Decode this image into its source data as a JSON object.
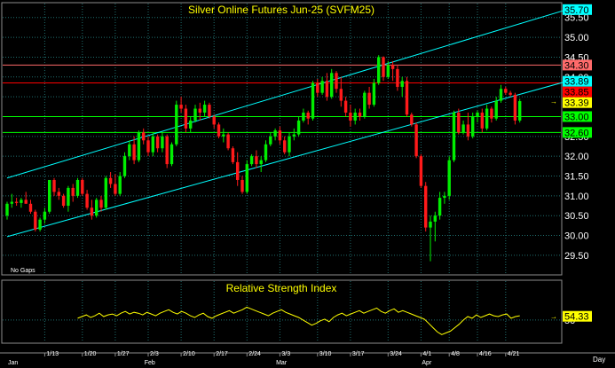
{
  "chart_data": [
    {
      "type": "candlestick",
      "title": "Silver Online Futures Jun-25 (SVFM25)",
      "note": "No Gaps",
      "y_ticks": [
        "29.50",
        "30.00",
        "30.50",
        "31.00",
        "31.50",
        "32.00",
        "32.50",
        "33.00",
        "33.50",
        "34.00",
        "34.50",
        "35.00",
        "35.50"
      ],
      "ylim": [
        29.05,
        35.83
      ],
      "x_ticks": [
        "1/13",
        "1/20",
        "1/27",
        "2/3",
        "2/10",
        "2/17",
        "2/24",
        "3/3",
        "3/10",
        "3/17",
        "3/24",
        "4/1",
        "4/8",
        "4/16",
        "4/21"
      ],
      "month_labels": [
        "Jan",
        "Feb",
        "Mar",
        "Apr"
      ],
      "x_axis_unit": "Day",
      "price_labels": [
        {
          "value": 35.7,
          "label": "35.70",
          "color": "#00ffff"
        },
        {
          "value": 34.3,
          "label": "34.30",
          "color": "#ff6a6a"
        },
        {
          "value": 33.89,
          "label": "33.89",
          "color": "#00ffff"
        },
        {
          "value": 33.85,
          "label": "33.85",
          "color": "#ff0000"
        },
        {
          "value": 33.39,
          "label": "33.39",
          "color": "#ffff00"
        },
        {
          "value": 33.0,
          "label": "33.00",
          "color": "#00ff00"
        },
        {
          "value": 32.6,
          "label": "32.60",
          "color": "#00ff00"
        }
      ],
      "horizontal_lines": [
        {
          "value": 34.3,
          "color": "#ff6a6a"
        },
        {
          "value": 33.85,
          "color": "#ff0000"
        },
        {
          "value": 33.0,
          "color": "#00ff00"
        },
        {
          "value": 32.6,
          "color": "#00ff00"
        }
      ],
      "channel_lines": [
        {
          "from": [
            0,
            31.45
          ],
          "to": [
            119,
            35.7
          ],
          "color": "#00ffff"
        },
        {
          "from": [
            0,
            29.97
          ],
          "to": [
            119,
            33.89
          ],
          "color": "#00ffff"
        }
      ],
      "candles": [
        [
          30.5,
          30.85,
          30.4,
          30.8
        ],
        [
          30.8,
          31.05,
          30.7,
          30.85
        ],
        [
          30.85,
          30.95,
          30.75,
          30.82
        ],
        [
          30.82,
          30.95,
          30.7,
          30.9
        ],
        [
          30.9,
          31.1,
          30.8,
          30.8
        ],
        [
          30.8,
          30.9,
          30.55,
          30.6
        ],
        [
          30.6,
          30.65,
          30.1,
          30.15
        ],
        [
          30.15,
          30.45,
          30.1,
          30.4
        ],
        [
          30.4,
          30.7,
          30.3,
          30.6
        ],
        [
          30.6,
          31.4,
          30.55,
          31.4
        ],
        [
          31.4,
          31.45,
          31.0,
          31.1
        ],
        [
          31.1,
          31.2,
          30.9,
          31.0
        ],
        [
          31.0,
          31.05,
          30.7,
          30.75
        ],
        [
          30.75,
          31.25,
          30.6,
          31.2
        ],
        [
          31.2,
          31.3,
          30.85,
          31.0
        ],
        [
          31.0,
          31.45,
          30.95,
          31.4
        ],
        [
          31.4,
          31.45,
          31.0,
          31.05
        ],
        [
          31.05,
          31.15,
          30.65,
          30.7
        ],
        [
          30.7,
          30.9,
          30.4,
          30.5
        ],
        [
          30.5,
          30.95,
          30.45,
          30.9
        ],
        [
          30.9,
          31.0,
          30.6,
          30.7
        ],
        [
          30.7,
          31.5,
          30.65,
          31.45
        ],
        [
          31.45,
          31.6,
          31.2,
          31.3
        ],
        [
          31.3,
          31.55,
          31.0,
          31.05
        ],
        [
          31.05,
          31.6,
          31.0,
          31.5
        ],
        [
          31.5,
          32.1,
          31.45,
          32.0
        ],
        [
          32.0,
          32.4,
          31.9,
          32.3
        ],
        [
          32.3,
          32.5,
          31.8,
          31.9
        ],
        [
          31.9,
          32.65,
          31.85,
          32.6
        ],
        [
          32.6,
          32.7,
          32.3,
          32.4
        ],
        [
          32.4,
          32.5,
          32.0,
          32.1
        ],
        [
          32.1,
          32.6,
          32.0,
          32.5
        ],
        [
          32.5,
          32.55,
          32.1,
          32.2
        ],
        [
          32.2,
          32.6,
          32.1,
          32.5
        ],
        [
          32.5,
          32.55,
          31.7,
          31.8
        ],
        [
          31.8,
          32.35,
          31.75,
          32.3
        ],
        [
          32.3,
          33.4,
          32.25,
          33.3
        ],
        [
          33.3,
          33.5,
          33.1,
          33.2
        ],
        [
          33.2,
          33.3,
          32.6,
          32.7
        ],
        [
          32.7,
          33.0,
          32.6,
          32.9
        ],
        [
          32.9,
          33.3,
          32.85,
          33.2
        ],
        [
          33.2,
          33.35,
          32.9,
          33.1
        ],
        [
          33.1,
          33.4,
          33.0,
          33.3
        ],
        [
          33.3,
          33.35,
          32.95,
          33.0
        ],
        [
          33.0,
          33.05,
          32.7,
          32.8
        ],
        [
          32.8,
          32.85,
          32.45,
          32.5
        ],
        [
          32.5,
          32.7,
          32.35,
          32.55
        ],
        [
          32.55,
          32.6,
          32.15,
          32.2
        ],
        [
          32.2,
          32.25,
          31.8,
          31.85
        ],
        [
          31.85,
          32.1,
          31.25,
          31.4
        ],
        [
          31.4,
          31.5,
          31.05,
          31.1
        ],
        [
          31.1,
          31.9,
          31.05,
          31.8
        ],
        [
          31.8,
          32.05,
          31.75,
          32.0
        ],
        [
          32.0,
          32.15,
          31.7,
          31.8
        ],
        [
          31.8,
          32.0,
          31.6,
          31.9
        ],
        [
          31.9,
          32.4,
          31.85,
          32.3
        ],
        [
          32.3,
          32.6,
          32.25,
          32.5
        ],
        [
          32.5,
          32.7,
          32.4,
          32.65
        ],
        [
          32.65,
          32.75,
          32.3,
          32.4
        ],
        [
          32.4,
          32.5,
          32.05,
          32.1
        ],
        [
          32.1,
          32.6,
          32.0,
          32.5
        ],
        [
          32.5,
          32.7,
          32.4,
          32.55
        ],
        [
          32.55,
          33.0,
          32.5,
          32.9
        ],
        [
          32.9,
          33.2,
          32.85,
          33.1
        ],
        [
          33.1,
          33.15,
          32.8,
          32.95
        ],
        [
          32.95,
          33.9,
          32.9,
          33.85
        ],
        [
          33.85,
          33.95,
          33.5,
          33.6
        ],
        [
          33.6,
          34.0,
          33.55,
          33.9
        ],
        [
          33.9,
          34.1,
          33.4,
          33.5
        ],
        [
          33.5,
          34.2,
          33.45,
          34.1
        ],
        [
          34.1,
          34.15,
          33.6,
          33.7
        ],
        [
          33.7,
          34.0,
          33.25,
          33.4
        ],
        [
          33.4,
          33.5,
          33.0,
          33.1
        ],
        [
          33.1,
          33.3,
          32.75,
          32.9
        ],
        [
          32.9,
          33.2,
          32.8,
          33.1
        ],
        [
          33.1,
          33.2,
          32.9,
          33.0
        ],
        [
          33.0,
          33.65,
          32.95,
          33.6
        ],
        [
          33.6,
          33.75,
          33.2,
          33.3
        ],
        [
          33.3,
          33.95,
          33.25,
          33.85
        ],
        [
          33.85,
          34.55,
          33.8,
          34.5
        ],
        [
          34.5,
          34.52,
          33.9,
          34.0
        ],
        [
          34.0,
          34.4,
          33.95,
          34.3
        ],
        [
          34.3,
          34.4,
          33.9,
          34.2
        ],
        [
          34.2,
          34.3,
          33.65,
          33.75
        ],
        [
          33.75,
          34.0,
          33.5,
          33.9
        ],
        [
          33.9,
          34.0,
          33.0,
          33.05
        ],
        [
          33.05,
          33.1,
          32.75,
          32.8
        ],
        [
          32.8,
          32.85,
          31.95,
          32.0
        ],
        [
          32.0,
          32.05,
          31.2,
          31.25
        ],
        [
          31.25,
          31.35,
          30.1,
          30.2
        ],
        [
          30.2,
          30.5,
          29.35,
          30.35
        ],
        [
          30.35,
          30.6,
          29.85,
          30.5
        ],
        [
          30.5,
          31.1,
          30.4,
          30.95
        ],
        [
          30.95,
          31.1,
          30.8,
          31.0
        ],
        [
          31.0,
          32.0,
          30.9,
          31.9
        ],
        [
          31.9,
          33.15,
          31.85,
          33.1
        ],
        [
          33.1,
          33.2,
          32.55,
          32.6
        ],
        [
          32.6,
          32.9,
          32.55,
          32.8
        ],
        [
          32.8,
          33.1,
          32.4,
          32.5
        ],
        [
          32.5,
          33.1,
          32.45,
          33.0
        ],
        [
          33.0,
          33.15,
          32.85,
          33.1
        ],
        [
          33.1,
          33.2,
          32.6,
          32.7
        ],
        [
          32.7,
          33.3,
          32.65,
          33.2
        ],
        [
          33.2,
          33.25,
          32.85,
          32.95
        ],
        [
          32.95,
          33.5,
          32.9,
          33.4
        ],
        [
          33.4,
          33.8,
          33.35,
          33.7
        ],
        [
          33.7,
          33.75,
          33.55,
          33.6
        ],
        [
          33.6,
          33.65,
          33.5,
          33.55
        ],
        [
          33.55,
          33.6,
          32.8,
          32.9
        ],
        [
          32.9,
          33.45,
          32.85,
          33.39
        ]
      ]
    },
    {
      "type": "line",
      "title": "Relative Strength Index",
      "y_ticks": [
        "50"
      ],
      "ylim": [
        25,
        82
      ],
      "current_value": {
        "value": 54.33,
        "label": "54.33",
        "color": "#ffff00"
      },
      "series": [
        {
          "color": "#ffff00",
          "values": [
            52,
            54,
            56,
            53,
            55,
            58,
            54,
            56,
            57,
            55,
            58,
            60,
            57,
            59,
            58,
            56,
            59,
            57,
            55,
            58,
            60,
            62,
            59,
            57,
            60,
            58,
            55,
            53,
            56,
            58,
            54,
            52,
            55,
            57,
            59,
            61,
            58,
            60,
            62,
            65,
            63,
            61,
            59,
            57,
            55,
            58,
            60,
            62,
            59,
            57,
            55,
            53,
            50,
            47,
            44,
            46,
            49,
            51,
            48,
            53,
            56,
            58,
            55,
            57,
            59,
            61,
            58,
            60,
            62,
            64,
            60,
            58,
            61,
            63,
            59,
            61,
            59,
            57,
            55,
            53,
            51,
            46,
            41,
            36,
            33,
            35,
            37,
            41,
            45,
            50,
            54,
            52,
            56,
            53,
            55,
            57,
            55,
            54,
            56,
            57,
            52,
            54,
            55
          ]
        }
      ]
    }
  ]
}
